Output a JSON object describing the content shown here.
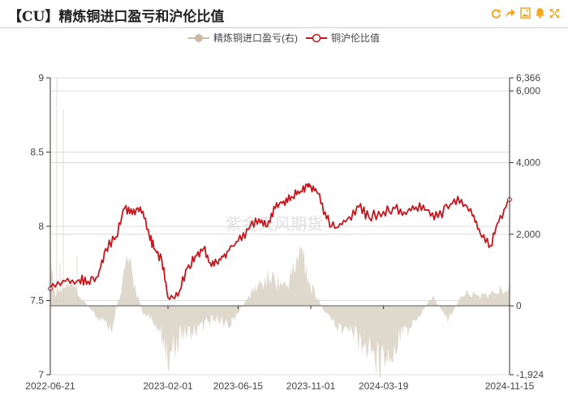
{
  "header": {
    "title": "【CU】精炼铜进口盈亏和沪伦比值",
    "tools": [
      {
        "name": "refresh-icon",
        "glyph": "⟳"
      },
      {
        "name": "share-icon",
        "glyph": "➦"
      },
      {
        "name": "save-image-icon",
        "glyph": "▣"
      },
      {
        "name": "alert-bell-icon",
        "glyph": "🔔"
      },
      {
        "name": "fullscreen-icon",
        "glyph": "⤢"
      }
    ]
  },
  "legend": {
    "series_1": "精炼铜进口盈亏(右)",
    "series_2": "铜沪伦比值"
  },
  "watermark": "紫金天风期货",
  "colors": {
    "area": "#d9d1c4",
    "line": "#c8161d",
    "accent": "#f5a623",
    "grid": "#dcdcdc"
  },
  "chart_data": {
    "type": "line",
    "title": "【CU】精炼铜进口盈亏和沪伦比值",
    "x_tick_labels": [
      "2022-06-21",
      "2023-02-01",
      "2023-06-15",
      "2023-11-01",
      "2024-03-19",
      "2024-11-15"
    ],
    "left_axis": {
      "label": "铜沪伦比值",
      "ticks": [
        9,
        8.5,
        8,
        7.5,
        7
      ],
      "range": [
        7,
        9
      ]
    },
    "right_axis": {
      "label": "精炼铜进口盈亏",
      "ticks": [
        6366,
        6000,
        4000,
        2000,
        0,
        -1924
      ],
      "range": [
        -1924,
        6366
      ]
    },
    "legend_position": "top",
    "grid": true,
    "series": [
      {
        "name": "铜沪伦比值",
        "axis": "left",
        "type": "line",
        "x": [
          "2022-06-21",
          "2022-07-20",
          "2022-08-15",
          "2022-09-01",
          "2022-09-20",
          "2022-10-05",
          "2022-10-25",
          "2022-11-10",
          "2022-11-25",
          "2022-12-10",
          "2022-12-25",
          "2023-01-05",
          "2023-01-20",
          "2023-02-01",
          "2023-02-20",
          "2023-03-10",
          "2023-03-25",
          "2023-04-10",
          "2023-04-25",
          "2023-05-10",
          "2023-05-25",
          "2023-06-15",
          "2023-07-05",
          "2023-07-25",
          "2023-08-10",
          "2023-08-25",
          "2023-09-10",
          "2023-09-25",
          "2023-10-10",
          "2023-10-25",
          "2023-11-01",
          "2023-11-15",
          "2023-12-01",
          "2023-12-20",
          "2024-01-10",
          "2024-02-01",
          "2024-02-20",
          "2024-03-19",
          "2024-04-10",
          "2024-05-01",
          "2024-05-20",
          "2024-06-10",
          "2024-07-01",
          "2024-07-25",
          "2024-08-15",
          "2024-09-05",
          "2024-09-20",
          "2024-10-10",
          "2024-10-25",
          "2024-11-15"
        ],
        "values": [
          7.58,
          7.63,
          7.64,
          7.63,
          7.66,
          7.85,
          7.93,
          8.12,
          8.08,
          8.13,
          7.98,
          7.85,
          7.78,
          7.52,
          7.53,
          7.72,
          7.8,
          7.85,
          7.73,
          7.78,
          7.83,
          7.9,
          7.98,
          8.05,
          8.0,
          8.12,
          8.17,
          8.2,
          8.22,
          8.28,
          8.27,
          8.22,
          8.05,
          7.99,
          8.05,
          8.13,
          8.06,
          8.1,
          8.12,
          8.08,
          8.13,
          8.11,
          8.06,
          8.15,
          8.18,
          8.07,
          7.95,
          7.87,
          8.03,
          8.18
        ]
      },
      {
        "name": "精炼铜进口盈亏(右)",
        "axis": "right",
        "type": "area",
        "x": [
          "2022-06-21",
          "2022-07-01",
          "2022-08-01",
          "2022-09-15",
          "2022-10-15",
          "2022-11-15",
          "2022-12-15",
          "2023-01-15",
          "2023-02-01",
          "2023-03-01",
          "2023-04-01",
          "2023-05-01",
          "2023-06-01",
          "2023-06-15",
          "2023-07-15",
          "2023-08-15",
          "2023-09-15",
          "2023-10-15",
          "2023-11-01",
          "2023-11-25",
          "2023-12-20",
          "2024-01-20",
          "2024-02-20",
          "2024-03-19",
          "2024-04-20",
          "2024-05-20",
          "2024-06-20",
          "2024-07-20",
          "2024-08-20",
          "2024-09-20",
          "2024-10-20",
          "2024-11-15"
        ],
        "values": [
          1500,
          400,
          600,
          -300,
          -800,
          1400,
          -200,
          -600,
          -1500,
          -900,
          -700,
          -400,
          -600,
          -200,
          500,
          900,
          600,
          1700,
          600,
          -100,
          -600,
          -900,
          -1400,
          -1800,
          -1000,
          -500,
          300,
          -400,
          400,
          300,
          400,
          700
        ]
      }
    ]
  }
}
